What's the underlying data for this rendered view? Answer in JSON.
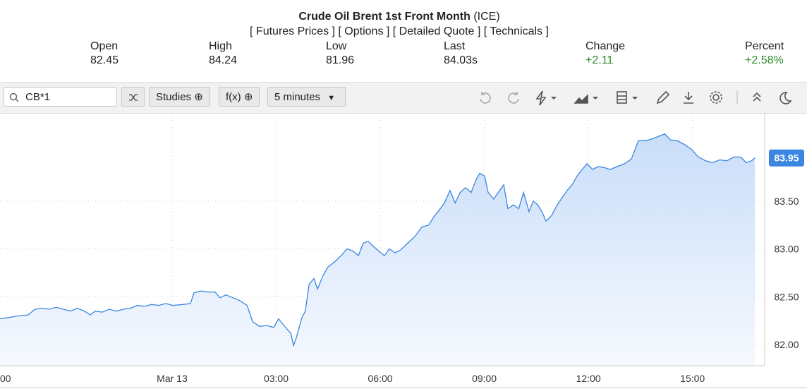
{
  "header": {
    "title": "Crude Oil Brent 1st Front Month",
    "exchange": "(ICE)",
    "links": [
      "[ Futures Prices ]",
      "[ Options ]",
      "[ Detailed Quote ]",
      "[ Technicals ]"
    ]
  },
  "quote": [
    {
      "label": "Open",
      "value": "82.45"
    },
    {
      "label": "High",
      "value": "84.24"
    },
    {
      "label": "Low",
      "value": "81.96"
    },
    {
      "label": "Last",
      "value": "84.03s"
    },
    {
      "label": "Change",
      "value": "+2.11"
    },
    {
      "label": "Percent",
      "value": "+2.58%"
    }
  ],
  "toolbar": {
    "symbol": "CB*1",
    "studies": "Studies",
    "fx": "f(x)",
    "interval": "5 minutes"
  },
  "chart_data": {
    "type": "line",
    "color": "#3a86e0",
    "grid": true,
    "xlim": [
      -4.96,
      17.08
    ],
    "ylim": [
      81.78,
      84.42
    ],
    "xticks": [
      {
        "value": -5,
        "label": "00"
      },
      {
        "value": 0,
        "label": "Mar 13"
      },
      {
        "value": 3,
        "label": "03:00"
      },
      {
        "value": 6,
        "label": "06:00"
      },
      {
        "value": 9,
        "label": "09:00"
      },
      {
        "value": 12,
        "label": "12:00"
      },
      {
        "value": 15,
        "label": "15:00"
      }
    ],
    "yticks": [
      {
        "value": 82,
        "label": "82.00"
      },
      {
        "value": 82.5,
        "label": "82.50"
      },
      {
        "value": 83,
        "label": "83.00"
      },
      {
        "value": 83.5,
        "label": "83.50"
      }
    ],
    "x": [
      -4.96,
      -4.76,
      -4.45,
      -4.15,
      -3.95,
      -3.74,
      -3.54,
      -3.34,
      -3.13,
      -2.93,
      -2.73,
      -2.52,
      -2.36,
      -2.22,
      -2.01,
      -1.81,
      -1.61,
      -1.4,
      -1.2,
      -1.0,
      -0.79,
      -0.59,
      -0.39,
      -0.18,
      0.02,
      0.33,
      0.53,
      0.63,
      0.83,
      1.04,
      1.24,
      1.38,
      1.55,
      1.75,
      1.95,
      2.16,
      2.32,
      2.52,
      2.73,
      2.93,
      3.07,
      3.29,
      3.42,
      3.5,
      3.58,
      3.74,
      3.84,
      3.95,
      4.09,
      4.19,
      4.35,
      4.49,
      4.7,
      4.9,
      5.04,
      5.21,
      5.37,
      5.51,
      5.65,
      5.82,
      5.98,
      6.12,
      6.26,
      6.43,
      6.59,
      6.79,
      7.0,
      7.2,
      7.4,
      7.55,
      7.69,
      7.85,
      8.01,
      8.16,
      8.3,
      8.46,
      8.62,
      8.77,
      8.87,
      9.01,
      9.11,
      9.27,
      9.44,
      9.56,
      9.68,
      9.84,
      9.99,
      10.13,
      10.29,
      10.41,
      10.54,
      10.66,
      10.78,
      10.94,
      11.1,
      11.27,
      11.41,
      11.55,
      11.67,
      11.82,
      11.96,
      12.12,
      12.28,
      12.45,
      12.63,
      12.83,
      13.04,
      13.24,
      13.44,
      13.65,
      13.85,
      14.05,
      14.2,
      14.36,
      14.56,
      14.77,
      14.97,
      15.17,
      15.38,
      15.58,
      15.78,
      15.99,
      16.19,
      16.39,
      16.55,
      16.7,
      16.8
    ],
    "values": [
      82.27,
      82.28,
      82.3,
      82.31,
      82.37,
      82.38,
      82.37,
      82.39,
      82.37,
      82.35,
      82.38,
      82.35,
      82.31,
      82.35,
      82.34,
      82.37,
      82.35,
      82.37,
      82.38,
      82.41,
      82.4,
      82.42,
      82.41,
      82.43,
      82.41,
      82.42,
      82.43,
      82.54,
      82.56,
      82.55,
      82.55,
      82.49,
      82.52,
      82.49,
      82.46,
      82.41,
      82.24,
      82.19,
      82.2,
      82.18,
      82.27,
      82.17,
      82.12,
      81.99,
      82.07,
      82.28,
      82.35,
      82.63,
      82.69,
      82.58,
      82.72,
      82.81,
      82.87,
      82.94,
      83.0,
      82.98,
      82.93,
      83.06,
      83.08,
      83.02,
      82.97,
      82.93,
      83.0,
      82.96,
      82.99,
      83.06,
      83.13,
      83.23,
      83.25,
      83.34,
      83.4,
      83.48,
      83.61,
      83.48,
      83.59,
      83.64,
      83.59,
      83.73,
      83.79,
      83.76,
      83.59,
      83.52,
      83.61,
      83.67,
      83.42,
      83.46,
      83.42,
      83.59,
      83.39,
      83.5,
      83.46,
      83.39,
      83.29,
      83.35,
      83.46,
      83.55,
      83.62,
      83.68,
      83.76,
      83.83,
      83.89,
      83.83,
      83.86,
      83.85,
      83.83,
      83.86,
      83.89,
      83.94,
      84.13,
      84.13,
      84.15,
      84.18,
      84.2,
      84.14,
      84.13,
      84.09,
      84.04,
      83.96,
      83.92,
      83.9,
      83.93,
      83.92,
      83.96,
      83.96,
      83.9,
      83.92,
      83.95
    ]
  }
}
